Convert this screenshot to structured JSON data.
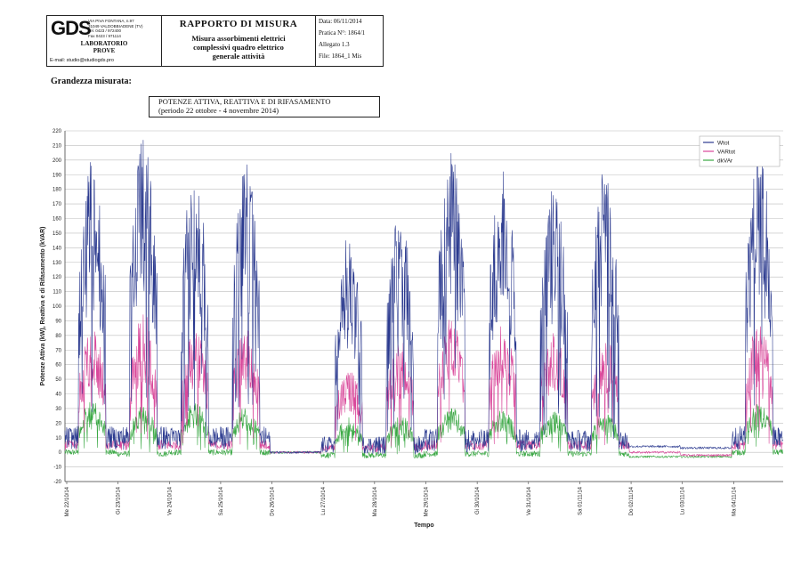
{
  "header": {
    "logo": "GDS",
    "address_lines": [
      "VIA PIVA FONTANA, n.97",
      "31049 VALDOBBIADENE (TV)",
      "Tel. 0423 / 972400",
      "Fax 0423 / 971114"
    ],
    "lab_line1": "LABORATORIO",
    "lab_line2": "PROVE",
    "email": "E-mail: studio@studiogds.pro",
    "report_title": "RAPPORTO  DI  MISURA",
    "report_desc": [
      "Misura assorbimenti elettrici",
      "complessivi quadro elettrico",
      "generale attività"
    ],
    "date": "Data: 06/11/2014",
    "pratica": "Pratica N°: 1864/1",
    "allegato": "Allegato 1.3",
    "file": "File: 1864_1 Mis"
  },
  "section_label": "Grandezza misurata:",
  "chart_title_line1": "POTENZE ATTIVA, REATTIVA E DI RIFASAMENTO",
  "chart_title_line2": "(periodo 22 ottobre - 4 novembre 2014)",
  "chart_data": {
    "type": "line",
    "ylabel": "Potenze Attiva (kW), Reattiva e di Rifasamento (kVAR)",
    "xlabel": "Tempo",
    "ylim": [
      -20,
      220
    ],
    "yticks": [
      -20,
      -10,
      0,
      10,
      20,
      30,
      40,
      50,
      60,
      70,
      80,
      90,
      100,
      110,
      120,
      130,
      140,
      150,
      160,
      170,
      180,
      190,
      200,
      210,
      220
    ],
    "x_tick_labels": [
      "Me 22/10/14",
      "Gi 23/10/14",
      "Ve 24/10/14",
      "Sa 25/10/14",
      "Do 26/10/14",
      "Lu 27/10/14",
      "Ma 28/10/14",
      "Me 29/10/14",
      "Gi 30/10/14",
      "Ve 31/10/14",
      "Sa 01/11/14",
      "Do 02/11/14",
      "Lu 03/11/14",
      "Ma 04/11/14"
    ],
    "grid": true,
    "legend_position": "top-right",
    "series": [
      {
        "name": "Wtot",
        "color": "#2b3a8f",
        "day_peaks": [
          201,
          216,
          200,
          200,
          0,
          150,
          165,
          210,
          200,
          185,
          200,
          5,
          0,
          210
        ],
        "day_bases": [
          10,
          10,
          10,
          10,
          0,
          5,
          5,
          8,
          8,
          8,
          8,
          4,
          3,
          10
        ]
      },
      {
        "name": "VARtot",
        "color": "#d9479a",
        "day_peaks": [
          87,
          96,
          86,
          88,
          0,
          58,
          78,
          92,
          88,
          82,
          80,
          0,
          0,
          90
        ],
        "day_bases": [
          5,
          5,
          5,
          5,
          0,
          3,
          3,
          5,
          5,
          5,
          5,
          0,
          -2,
          5
        ]
      },
      {
        "name": "dkVAr",
        "color": "#3aa844",
        "day_peaks": [
          35,
          33,
          34,
          32,
          0,
          24,
          26,
          31,
          29,
          28,
          27,
          0,
          -3,
          34
        ],
        "day_bases": [
          0,
          -1,
          0,
          0,
          0,
          -2,
          -2,
          -1,
          -1,
          -1,
          -1,
          -3,
          -3,
          0
        ]
      }
    ]
  }
}
